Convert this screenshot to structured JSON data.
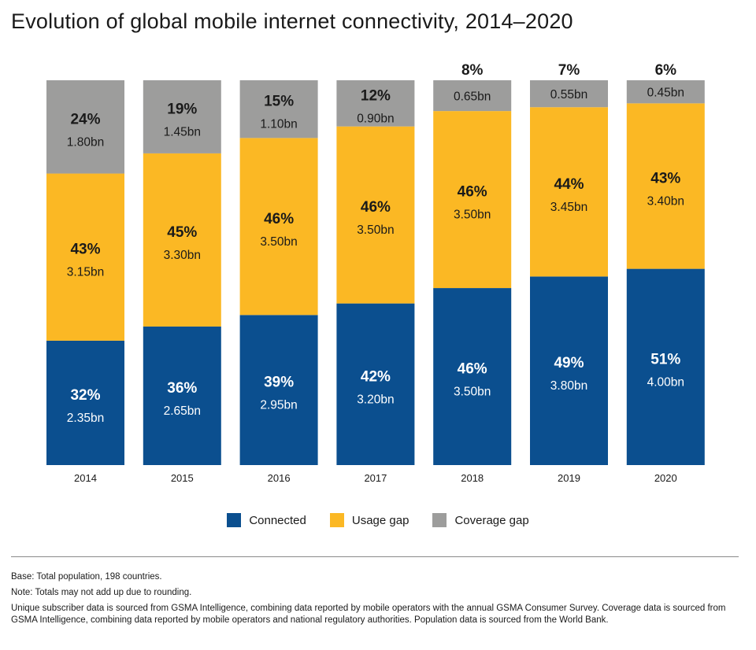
{
  "title": "Evolution of global mobile internet connectivity, 2014–2020",
  "colors": {
    "connected": "#0b4f8f",
    "usage_gap": "#fbb824",
    "coverage_gap": "#9d9d9c",
    "label_on_dark": "#ffffff",
    "label_on_light": "#1a1a1a"
  },
  "legend": [
    {
      "key": "connected",
      "label": "Connected"
    },
    {
      "key": "usage_gap",
      "label": "Usage gap"
    },
    {
      "key": "coverage_gap",
      "label": "Coverage gap"
    }
  ],
  "notes": {
    "base": "Base: Total population, 198 countries.",
    "note": "Note: Totals may not add up due to rounding.",
    "source": "Unique subscriber data is sourced from GSMA Intelligence, combining data reported by mobile operators with the annual GSMA Consumer Survey. Coverage data is sourced from GSMA Intelligence, combining data reported by mobile operators and national regulatory authorities. Population data is sourced from the World Bank."
  },
  "chart_data": {
    "type": "bar",
    "stacked": true,
    "title": "Evolution of global mobile internet connectivity, 2014–2020",
    "xlabel": "",
    "ylabel": "",
    "ylim": [
      0,
      100
    ],
    "categories": [
      "2014",
      "2015",
      "2016",
      "2017",
      "2018",
      "2019",
      "2020"
    ],
    "series": [
      {
        "name": "Connected",
        "key": "connected",
        "values": [
          32,
          36,
          39,
          42,
          46,
          49,
          51
        ],
        "value_labels": [
          "32%",
          "36%",
          "39%",
          "42%",
          "46%",
          "49%",
          "51%"
        ],
        "sub_labels": [
          "2.35bn",
          "2.65bn",
          "2.95bn",
          "3.20bn",
          "3.50bn",
          "3.80bn",
          "4.00bn"
        ]
      },
      {
        "name": "Usage gap",
        "key": "usage_gap",
        "values": [
          43,
          45,
          46,
          46,
          46,
          44,
          43
        ],
        "value_labels": [
          "43%",
          "45%",
          "46%",
          "46%",
          "46%",
          "44%",
          "43%"
        ],
        "sub_labels": [
          "3.15bn",
          "3.30bn",
          "3.50bn",
          "3.50bn",
          "3.50bn",
          "3.45bn",
          "3.40bn"
        ]
      },
      {
        "name": "Coverage gap",
        "key": "coverage_gap",
        "values": [
          24,
          19,
          15,
          12,
          8,
          7,
          6
        ],
        "value_labels": [
          "24%",
          "19%",
          "15%",
          "12%",
          "8%",
          "7%",
          "6%"
        ],
        "sub_labels": [
          "1.80bn",
          "1.45bn",
          "1.10bn",
          "0.90bn",
          "0.65bn",
          "0.55bn",
          "0.45bn"
        ]
      }
    ]
  }
}
